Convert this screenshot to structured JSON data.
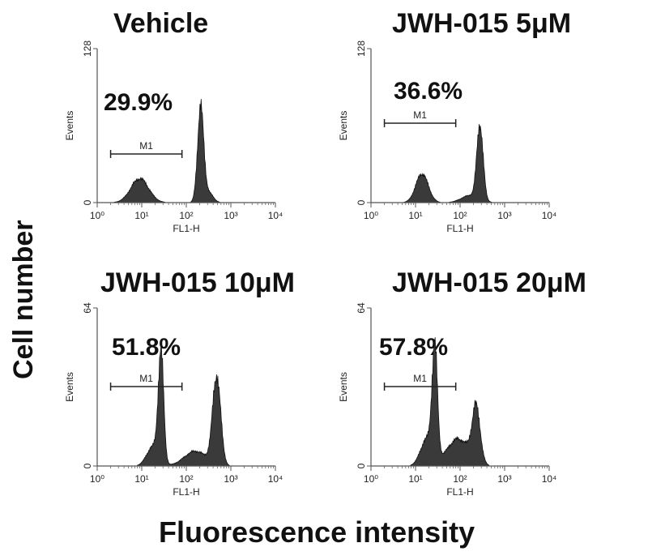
{
  "figure": {
    "ylabel": "Cell number",
    "xlabel": "Fluorescence intensity"
  },
  "chart_data": [
    {
      "type": "histogram",
      "title": "Vehicle",
      "gate_label": "M1",
      "gate_percent": "29.9%",
      "gate_range": [
        2,
        80
      ],
      "xlabel": "FL1-H",
      "ylabel": "Events",
      "x_scale": "log",
      "xlim": [
        1,
        10000
      ],
      "ylim": [
        0,
        128
      ],
      "y_ticks": [
        "0",
        "128"
      ],
      "x_ticks": [
        "10⁰",
        "10¹",
        "10²",
        "10³",
        "10⁴"
      ],
      "peaks": [
        {
          "center": 9,
          "height": 20,
          "width": 0.2
        },
        {
          "center": 210,
          "height": 78,
          "width": 0.07
        },
        {
          "center": 320,
          "height": 8,
          "width": 0.1
        }
      ]
    },
    {
      "type": "histogram",
      "title": "JWH-015 5μM",
      "gate_label": "M1",
      "gate_percent": "36.6%",
      "gate_range": [
        2,
        80
      ],
      "xlabel": "FL1-H",
      "ylabel": "Events",
      "x_scale": "log",
      "xlim": [
        1,
        10000
      ],
      "ylim": [
        0,
        128
      ],
      "y_ticks": [
        "0",
        "128"
      ],
      "x_ticks": [
        "10⁰",
        "10¹",
        "10²",
        "10³",
        "10⁴"
      ],
      "peaks": [
        {
          "center": 14,
          "height": 24,
          "width": 0.14
        },
        {
          "center": 280,
          "height": 62,
          "width": 0.07
        },
        {
          "center": 170,
          "height": 6,
          "width": 0.2
        }
      ]
    },
    {
      "type": "histogram",
      "title": "JWH-015 10μM",
      "gate_label": "M1",
      "gate_percent": "51.8%",
      "gate_range": [
        2,
        80
      ],
      "xlabel": "FL1-H",
      "ylabel": "Events",
      "x_scale": "log",
      "xlim": [
        1,
        10000
      ],
      "ylim": [
        0,
        64
      ],
      "y_ticks": [
        "0",
        "64"
      ],
      "x_ticks": [
        "10⁰",
        "10¹",
        "10²",
        "10³",
        "10⁴"
      ],
      "peaks": [
        {
          "center": 27,
          "height": 44,
          "width": 0.06
        },
        {
          "center": 18,
          "height": 8,
          "width": 0.14
        },
        {
          "center": 480,
          "height": 36,
          "width": 0.09
        },
        {
          "center": 160,
          "height": 6,
          "width": 0.25
        }
      ]
    },
    {
      "type": "histogram",
      "title": "JWH-015 20μM",
      "gate_label": "M1",
      "gate_percent": "57.8%",
      "gate_range": [
        2,
        80
      ],
      "xlabel": "FL1-H",
      "ylabel": "Events",
      "x_scale": "log",
      "xlim": [
        1,
        10000
      ],
      "ylim": [
        0,
        64
      ],
      "y_ticks": [
        "0",
        "64"
      ],
      "x_ticks": [
        "10⁰",
        "10¹",
        "10²",
        "10³",
        "10⁴"
      ],
      "peaks": [
        {
          "center": 27,
          "height": 44,
          "width": 0.06
        },
        {
          "center": 18,
          "height": 11,
          "width": 0.14
        },
        {
          "center": 230,
          "height": 22,
          "width": 0.09
        },
        {
          "center": 90,
          "height": 11,
          "width": 0.25
        }
      ]
    }
  ]
}
